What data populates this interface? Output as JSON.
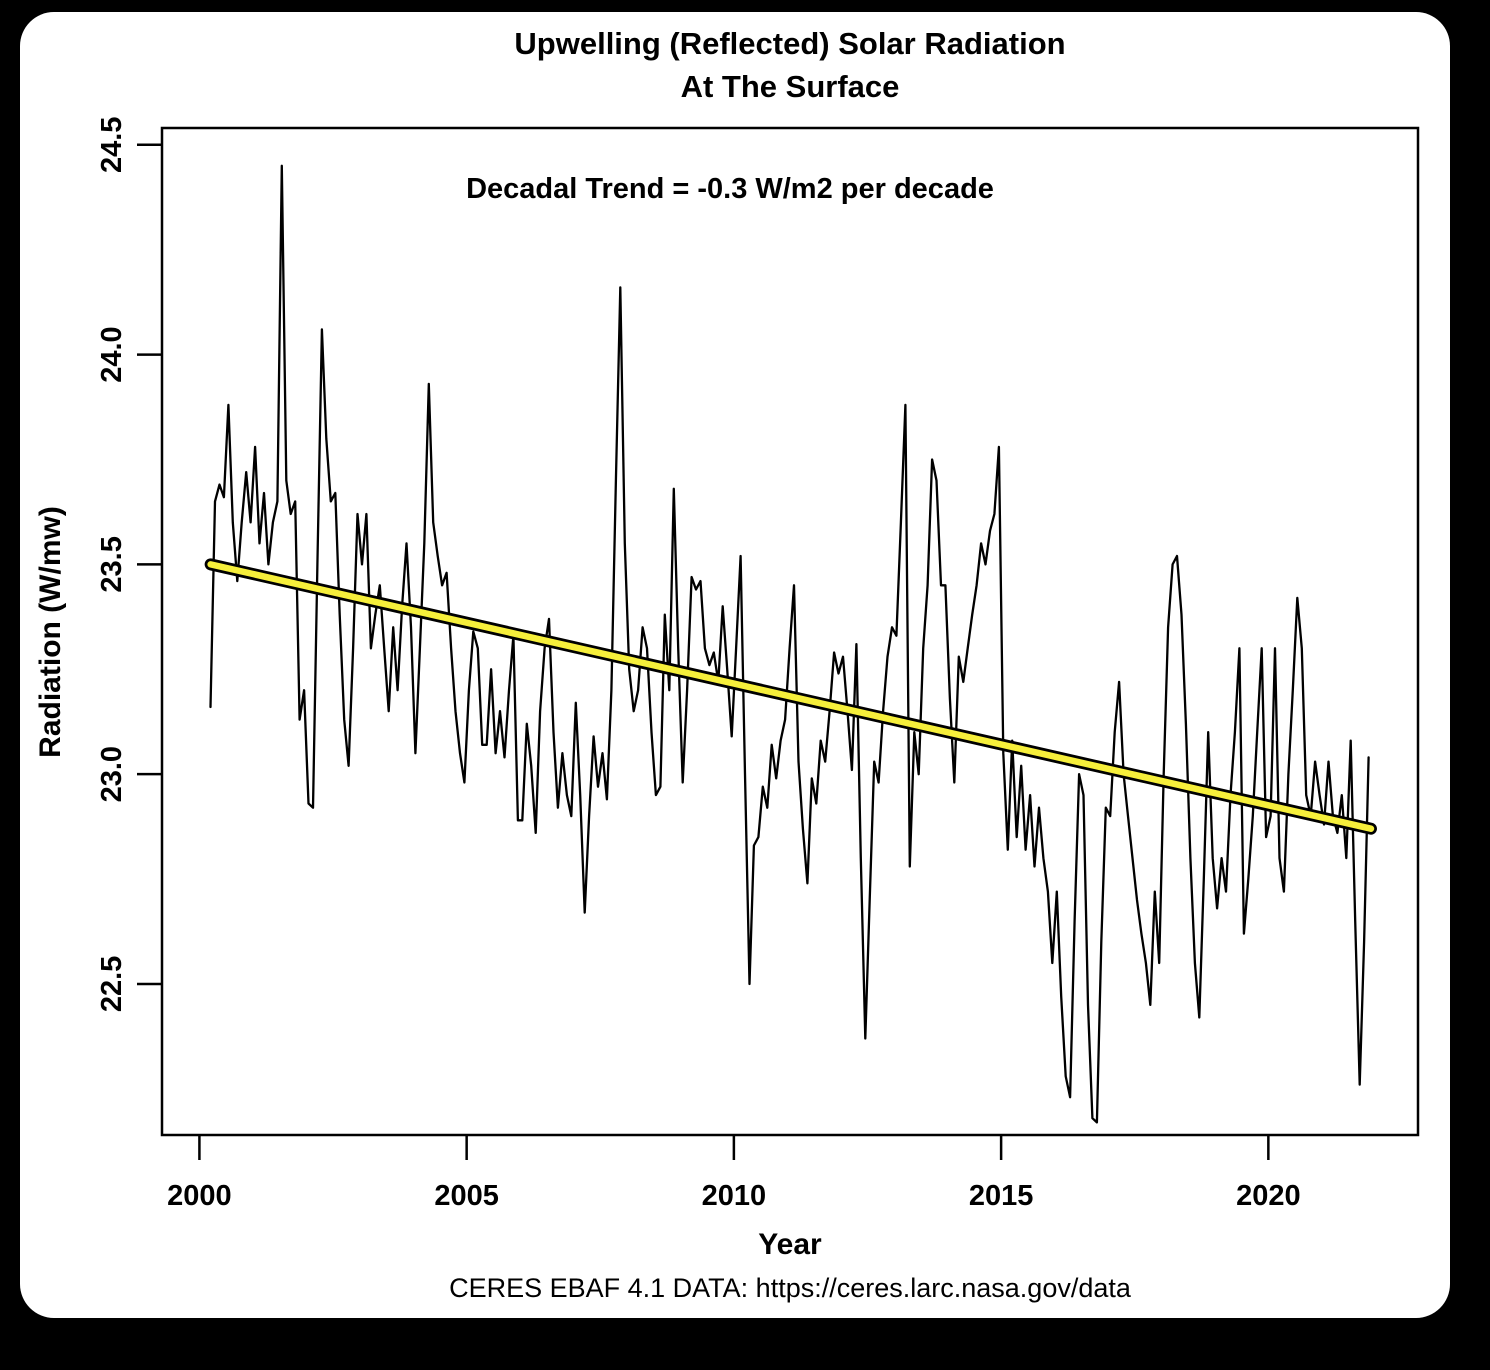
{
  "page": {
    "background_color": "#000000",
    "card_background_color": "#ffffff"
  },
  "title": {
    "line1": "Upwelling (Reflected) Solar Radiation",
    "line2": "At The Surface"
  },
  "annotation": {
    "text": "Decadal Trend = -0.3 W/m2 per decade"
  },
  "axes": {
    "x_label": "Year",
    "y_label": "Radiation (W/mw)"
  },
  "footer": {
    "text": "CERES EBAF 4.1 DATA: https://ceres.larc.nasa.gov/data"
  },
  "chart_data": {
    "type": "line",
    "title": "Upwelling (Reflected) Solar Radiation At The Surface",
    "xlabel": "Year",
    "ylabel": "Radiation (W/mw)",
    "xlim": [
      1999.3,
      2022.8
    ],
    "ylim": [
      22.14,
      24.54
    ],
    "x_ticks": [
      "2000",
      "2005",
      "2010",
      "2015",
      "2020"
    ],
    "y_ticks": [
      "22.5",
      "23.0",
      "23.5",
      "24.0",
      "24.5"
    ],
    "grid": false,
    "legend": "none",
    "series": [
      {
        "name": "monthly-radiation",
        "color": "#000000",
        "start_decimal_year": 2000.2083,
        "step_years": 0.0833333,
        "values": [
          23.16,
          23.65,
          23.69,
          23.66,
          23.88,
          23.6,
          23.46,
          23.6,
          23.72,
          23.6,
          23.78,
          23.55,
          23.67,
          23.5,
          23.6,
          23.65,
          24.45,
          23.7,
          23.62,
          23.65,
          23.13,
          23.2,
          22.93,
          22.92,
          23.5,
          24.06,
          23.8,
          23.65,
          23.67,
          23.38,
          23.13,
          23.02,
          23.3,
          23.62,
          23.5,
          23.62,
          23.3,
          23.38,
          23.45,
          23.3,
          23.15,
          23.35,
          23.2,
          23.4,
          23.55,
          23.35,
          23.05,
          23.3,
          23.55,
          23.93,
          23.6,
          23.52,
          23.45,
          23.48,
          23.3,
          23.15,
          23.05,
          22.98,
          23.2,
          23.34,
          23.3,
          23.07,
          23.07,
          23.25,
          23.05,
          23.15,
          23.04,
          23.2,
          23.33,
          22.89,
          22.89,
          23.12,
          23.02,
          22.86,
          23.15,
          23.3,
          23.37,
          23.1,
          22.92,
          23.05,
          22.95,
          22.9,
          23.17,
          22.95,
          22.67,
          22.9,
          23.09,
          22.97,
          23.05,
          22.94,
          23.2,
          23.7,
          24.16,
          23.55,
          23.25,
          23.15,
          23.2,
          23.35,
          23.3,
          23.1,
          22.95,
          22.97,
          23.38,
          23.2,
          23.68,
          23.3,
          22.98,
          23.2,
          23.47,
          23.44,
          23.46,
          23.3,
          23.26,
          23.29,
          23.22,
          23.4,
          23.25,
          23.09,
          23.3,
          23.52,
          23.0,
          22.5,
          22.83,
          22.85,
          22.97,
          22.92,
          23.07,
          22.99,
          23.08,
          23.13,
          23.3,
          23.45,
          23.03,
          22.87,
          22.74,
          22.99,
          22.93,
          23.08,
          23.03,
          23.15,
          23.29,
          23.24,
          23.28,
          23.15,
          23.01,
          23.31,
          22.8,
          22.37,
          22.7,
          23.03,
          22.98,
          23.15,
          23.28,
          23.35,
          23.33,
          23.6,
          23.88,
          22.78,
          23.1,
          23.0,
          23.3,
          23.45,
          23.75,
          23.7,
          23.45,
          23.45,
          23.18,
          22.98,
          23.28,
          23.22,
          23.3,
          23.38,
          23.45,
          23.55,
          23.5,
          23.58,
          23.62,
          23.78,
          23.05,
          22.82,
          23.08,
          22.85,
          23.02,
          22.82,
          22.95,
          22.78,
          22.92,
          22.8,
          22.72,
          22.55,
          22.72,
          22.47,
          22.28,
          22.23,
          22.65,
          23.0,
          22.95,
          22.45,
          22.18,
          22.17,
          22.6,
          22.92,
          22.9,
          23.1,
          23.22,
          23.0,
          22.9,
          22.8,
          22.7,
          22.62,
          22.55,
          22.45,
          22.72,
          22.55,
          23.0,
          23.35,
          23.5,
          23.52,
          23.38,
          23.12,
          22.8,
          22.55,
          22.42,
          22.75,
          23.1,
          22.8,
          22.68,
          22.8,
          22.72,
          22.95,
          23.1,
          23.3,
          22.62,
          22.75,
          22.9,
          23.1,
          23.3,
          22.85,
          22.9,
          23.3,
          22.8,
          22.72,
          23.0,
          23.2,
          23.42,
          23.3,
          22.95,
          22.9,
          23.03,
          22.95,
          22.88,
          23.03,
          22.9,
          22.86,
          22.95,
          22.8,
          23.08,
          22.65,
          22.26,
          22.6,
          23.04
        ]
      },
      {
        "name": "decadal-trend",
        "label": "Decadal Trend = -0.3 W/m2 per decade",
        "color": "#f6ef3b",
        "outline_color": "#000000",
        "x": [
          2000.21,
          2021.92
        ],
        "y": [
          23.5,
          22.87
        ]
      }
    ]
  }
}
